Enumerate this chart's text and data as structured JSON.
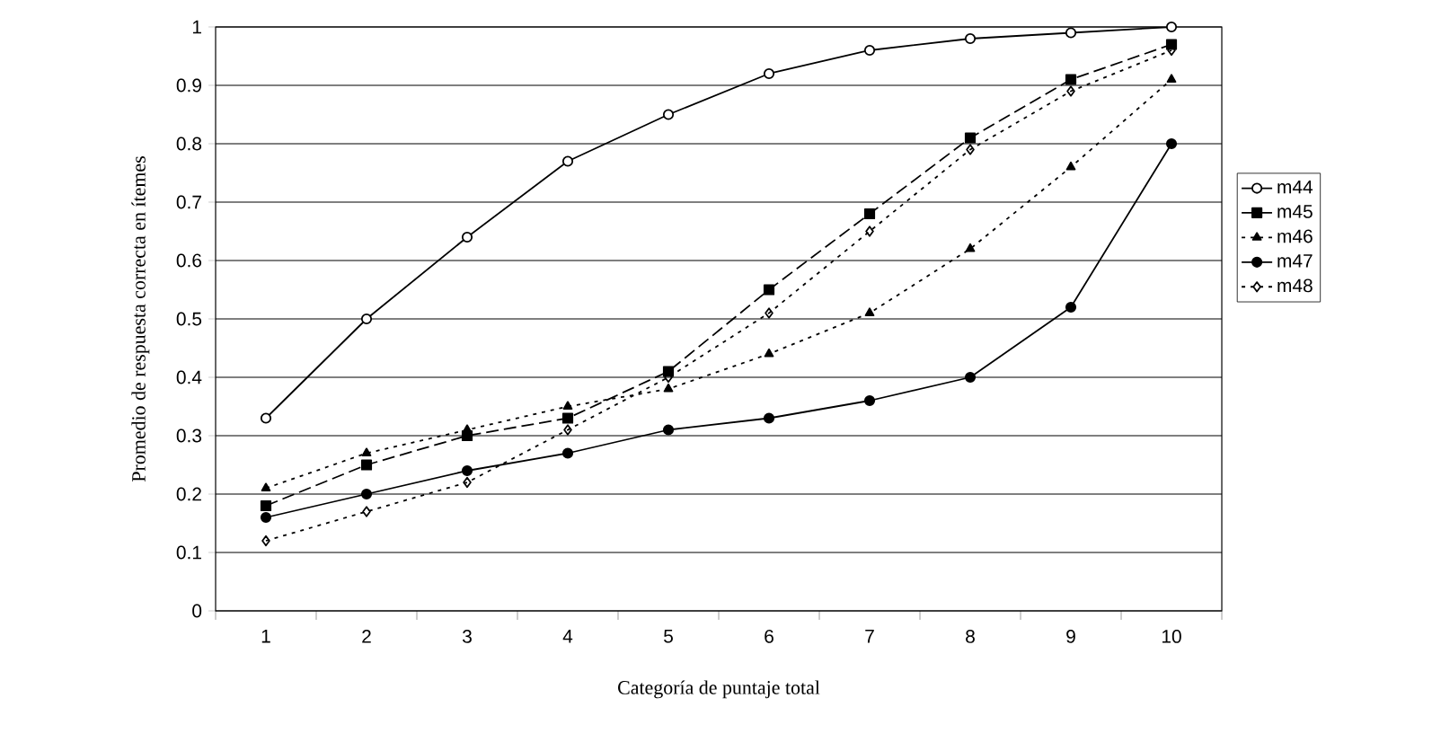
{
  "chart_data": {
    "type": "line",
    "xlabel": "Categoría de puntaje total",
    "ylabel": "Promedio de respuesta correcta en ítemes",
    "categories": [
      "1",
      "2",
      "3",
      "4",
      "5",
      "6",
      "7",
      "8",
      "9",
      "10"
    ],
    "ylim": [
      0,
      1
    ],
    "yticks": [
      0,
      0.1,
      0.2,
      0.3,
      0.4,
      0.5,
      0.6,
      0.7,
      0.8,
      0.9,
      1
    ],
    "grid": "y",
    "legend": "right",
    "series": [
      {
        "name": "m44",
        "color": "#000000",
        "marker": "circle",
        "line_style": "solid",
        "values": [
          0.33,
          0.5,
          0.64,
          0.77,
          0.85,
          0.92,
          0.96,
          0.98,
          0.99,
          1.0
        ]
      },
      {
        "name": "m45",
        "color": "#000000",
        "marker": "square",
        "line_style": "dashed",
        "values": [
          0.18,
          0.25,
          0.3,
          0.33,
          0.41,
          0.55,
          0.68,
          0.81,
          0.91,
          0.97
        ]
      },
      {
        "name": "m46",
        "color": "#000000",
        "marker": "triangle",
        "line_style": "dotted",
        "values": [
          0.21,
          0.27,
          0.31,
          0.35,
          0.38,
          0.44,
          0.51,
          0.62,
          0.76,
          0.91
        ]
      },
      {
        "name": "m47",
        "color": "#000000",
        "marker": "circle",
        "line_style": "solid",
        "values": [
          0.16,
          0.2,
          0.24,
          0.27,
          0.31,
          0.33,
          0.36,
          0.4,
          0.52,
          0.8
        ]
      },
      {
        "name": "m48",
        "color": "#000000",
        "marker": "diamond",
        "line_style": "dotted",
        "values": [
          0.12,
          0.17,
          0.22,
          0.31,
          0.4,
          0.51,
          0.65,
          0.79,
          0.89,
          0.96
        ]
      }
    ]
  }
}
